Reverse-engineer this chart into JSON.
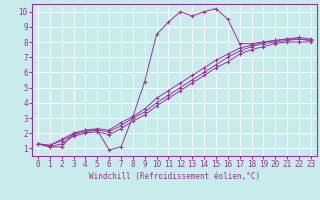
{
  "title": "",
  "xlabel": "Windchill (Refroidissement éolien,°C)",
  "ylabel": "",
  "background_color": "#c8ecec",
  "grid_color": "#ffffff",
  "line_color": "#993399",
  "marker_color": "#993399",
  "xlim": [
    -0.5,
    23.5
  ],
  "ylim": [
    0.5,
    10.5
  ],
  "xticks": [
    0,
    1,
    2,
    3,
    4,
    5,
    6,
    7,
    8,
    9,
    10,
    11,
    12,
    13,
    14,
    15,
    16,
    17,
    18,
    19,
    20,
    21,
    22,
    23
  ],
  "yticks": [
    1,
    2,
    3,
    4,
    5,
    6,
    7,
    8,
    9,
    10
  ],
  "curve1_x": [
    0,
    1,
    2,
    3,
    4,
    5,
    6,
    7,
    8,
    9,
    10,
    11,
    12,
    13,
    14,
    15,
    16,
    17,
    18,
    19,
    20,
    21,
    22,
    23
  ],
  "curve1_y": [
    1.3,
    1.1,
    1.1,
    2.0,
    2.2,
    2.2,
    0.9,
    1.1,
    3.1,
    5.4,
    8.5,
    9.3,
    10.0,
    9.7,
    10.0,
    10.2,
    9.5,
    7.9,
    7.9,
    8.0,
    8.1,
    8.2,
    8.2,
    8.1
  ],
  "curve2_x": [
    0,
    1,
    2,
    3,
    4,
    5,
    6,
    7,
    8,
    9,
    10,
    11,
    12,
    13,
    14,
    15,
    16,
    17,
    18,
    19,
    20,
    21,
    22,
    23
  ],
  "curve2_y": [
    1.3,
    1.2,
    1.5,
    1.9,
    2.1,
    2.2,
    2.1,
    2.5,
    3.0,
    3.4,
    4.0,
    4.5,
    5.0,
    5.5,
    6.0,
    6.5,
    7.0,
    7.4,
    7.7,
    7.9,
    8.0,
    8.1,
    8.2,
    8.1
  ],
  "curve3_x": [
    0,
    1,
    2,
    3,
    4,
    5,
    6,
    7,
    8,
    9,
    10,
    11,
    12,
    13,
    14,
    15,
    16,
    17,
    18,
    19,
    20,
    21,
    22,
    23
  ],
  "curve3_y": [
    1.3,
    1.2,
    1.6,
    2.0,
    2.2,
    2.3,
    2.2,
    2.7,
    3.1,
    3.6,
    4.3,
    4.8,
    5.3,
    5.8,
    6.3,
    6.8,
    7.2,
    7.6,
    7.8,
    8.0,
    8.1,
    8.2,
    8.3,
    8.2
  ],
  "curve4_x": [
    0,
    1,
    2,
    3,
    4,
    5,
    6,
    7,
    8,
    9,
    10,
    11,
    12,
    13,
    14,
    15,
    16,
    17,
    18,
    19,
    20,
    21,
    22,
    23
  ],
  "curve4_y": [
    1.3,
    1.1,
    1.3,
    1.8,
    2.0,
    2.1,
    1.9,
    2.3,
    2.8,
    3.2,
    3.8,
    4.3,
    4.8,
    5.3,
    5.8,
    6.3,
    6.7,
    7.2,
    7.5,
    7.7,
    7.9,
    8.0,
    8.0,
    8.0
  ],
  "xlabel_fontsize": 5.5,
  "tick_fontsize": 5.5,
  "lw": 0.7,
  "ms": 3.5
}
